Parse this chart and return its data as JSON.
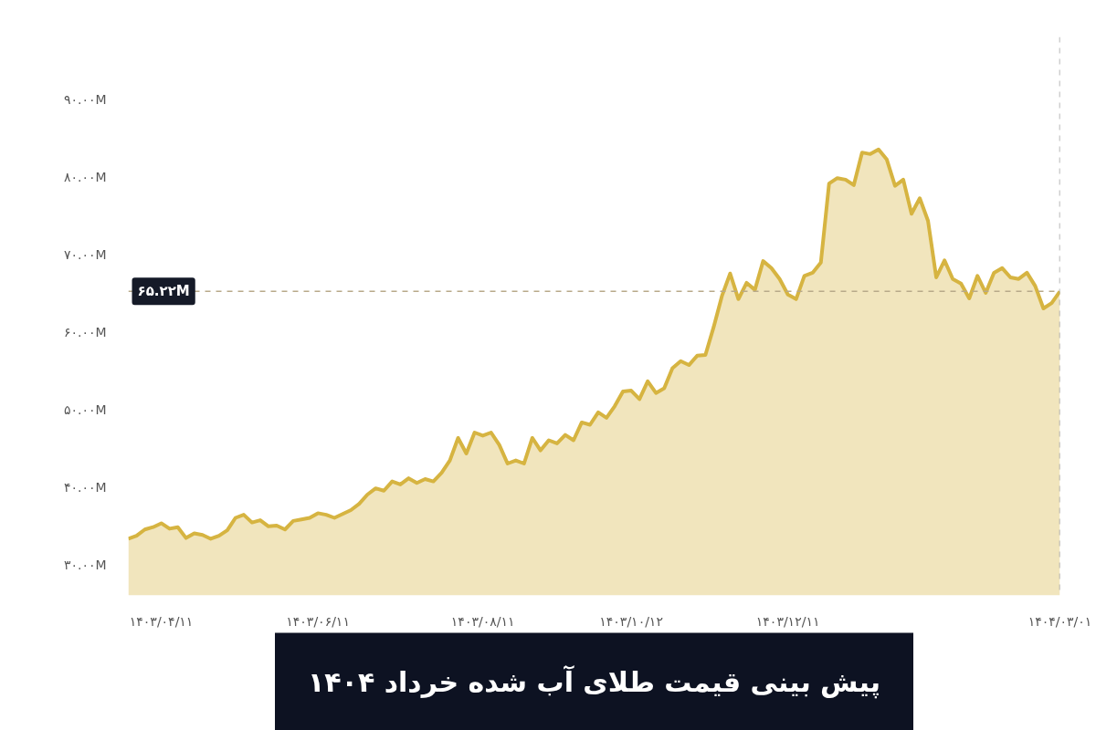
{
  "chart_data": {
    "type": "area",
    "title": "پیش بینی قیمت طلای آب شده خرداد ۱۴۰۴",
    "categories": [
      null,
      null,
      null,
      null,
      "۱۴۰۳/۰۴/۱۱",
      null,
      null,
      null,
      null,
      null,
      null,
      null,
      null,
      null,
      null,
      null,
      null,
      null,
      null,
      null,
      null,
      null,
      null,
      "۱۴۰۳/۰۶/۱۱",
      null,
      null,
      null,
      null,
      null,
      null,
      null,
      null,
      null,
      null,
      null,
      null,
      null,
      null,
      null,
      null,
      null,
      null,
      null,
      "۱۴۰۳/۰۸/۱۱",
      null,
      null,
      null,
      null,
      null,
      null,
      null,
      null,
      null,
      null,
      null,
      null,
      null,
      null,
      null,
      null,
      null,
      "۱۴۰۳/۱۰/۱۲",
      null,
      null,
      null,
      null,
      null,
      null,
      null,
      null,
      null,
      null,
      null,
      null,
      null,
      null,
      null,
      null,
      null,
      null,
      "۱۴۰۳/۱۲/۱۱",
      null,
      null,
      null,
      null,
      null,
      null,
      null,
      null,
      null,
      null,
      null,
      null,
      null,
      null,
      null,
      null,
      null,
      null,
      null,
      null,
      null,
      null,
      null,
      null,
      null,
      null,
      null,
      null,
      null,
      null,
      null,
      null,
      "۱۴۰۴/۰۳/۰۱"
    ],
    "series": [
      {
        "color": "#d6b441",
        "values": [
          33.3,
          33.7,
          34.5,
          34.8,
          35.3,
          34.6,
          34.8,
          33.4,
          34.0,
          33.8,
          33.3,
          33.7,
          34.4,
          36.0,
          36.4,
          35.4,
          35.7,
          34.9,
          35.0,
          34.5,
          35.6,
          35.8,
          36.0,
          36.6,
          36.4,
          36.0,
          36.5,
          37.0,
          37.8,
          39.0,
          39.8,
          39.5,
          40.7,
          40.3,
          41.1,
          40.5,
          41.0,
          40.7,
          41.8,
          43.4,
          46.3,
          44.3,
          47.0,
          46.6,
          47.0,
          45.4,
          43.0,
          43.4,
          43.0,
          46.3,
          44.7,
          46.0,
          45.6,
          46.7,
          46.0,
          48.3,
          48.0,
          49.6,
          48.9,
          50.4,
          52.3,
          52.4,
          51.3,
          53.6,
          52.1,
          52.7,
          55.3,
          56.2,
          55.7,
          56.9,
          57.0,
          60.6,
          64.6,
          67.5,
          64.2,
          66.3,
          65.4,
          69.1,
          68.2,
          66.8,
          64.8,
          64.2,
          67.2,
          67.6,
          68.9,
          79.1,
          79.8,
          79.6,
          78.9,
          83.1,
          82.9,
          83.5,
          82.2,
          78.8,
          79.6,
          75.2,
          77.2,
          74.3,
          67.0,
          69.2,
          66.8,
          66.2,
          64.3,
          67.2,
          65.0,
          67.6,
          68.2,
          67.0,
          66.8,
          67.6,
          65.9,
          63.0,
          63.7,
          65.2
        ]
      }
    ],
    "ylim": [
      26,
      98
    ],
    "yticks": [
      {
        "value": 30,
        "label": "۳۰.۰۰M"
      },
      {
        "value": 40,
        "label": "۴۰.۰۰M"
      },
      {
        "value": 50,
        "label": "۵۰.۰۰M"
      },
      {
        "value": 60,
        "label": "۶۰.۰۰M"
      },
      {
        "value": 70,
        "label": "۷۰.۰۰M"
      },
      {
        "value": 80,
        "label": "۸۰.۰۰M"
      },
      {
        "value": 90,
        "label": "۹۰.۰۰M"
      }
    ],
    "ref_lines": [
      {
        "axis": "y",
        "value": 65.22,
        "label": "۶۵.۲۲M",
        "color": "#b8a98a",
        "line_style": "dashed"
      },
      {
        "axis": "x",
        "value": "۱۴۰۴/۰۳/۰۱",
        "color": "#a0a0a0",
        "line_style": "dashed"
      }
    ],
    "grid": false,
    "marker": "none",
    "line_style": "solid"
  }
}
